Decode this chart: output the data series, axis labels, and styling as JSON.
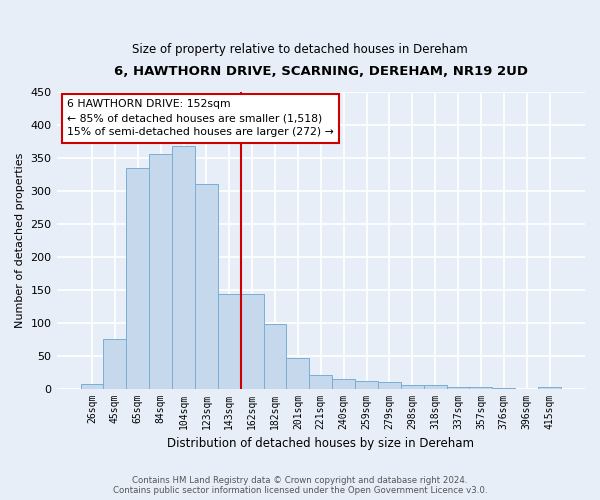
{
  "title": "6, HAWTHORN DRIVE, SCARNING, DEREHAM, NR19 2UD",
  "subtitle": "Size of property relative to detached houses in Dereham",
  "xlabel": "Distribution of detached houses by size in Dereham",
  "ylabel": "Number of detached properties",
  "bar_labels": [
    "26sqm",
    "45sqm",
    "65sqm",
    "84sqm",
    "104sqm",
    "123sqm",
    "143sqm",
    "162sqm",
    "182sqm",
    "201sqm",
    "221sqm",
    "240sqm",
    "259sqm",
    "279sqm",
    "298sqm",
    "318sqm",
    "337sqm",
    "357sqm",
    "376sqm",
    "396sqm",
    "415sqm"
  ],
  "bar_values": [
    7,
    75,
    335,
    355,
    368,
    310,
    143,
    143,
    98,
    46,
    21,
    15,
    12,
    10,
    5,
    5,
    3,
    2,
    1,
    0,
    3
  ],
  "bar_color": "#c6d9ec",
  "bar_edge_color": "#7aaed4",
  "vline_x_idx": 7,
  "vline_color": "#cc0000",
  "annotation_title": "6 HAWTHORN DRIVE: 152sqm",
  "annotation_line1": "← 85% of detached houses are smaller (1,518)",
  "annotation_line2": "15% of semi-detached houses are larger (272) →",
  "annotation_box_facecolor": "#ffffff",
  "annotation_box_edgecolor": "#cc0000",
  "ylim": [
    0,
    450
  ],
  "yticks": [
    0,
    50,
    100,
    150,
    200,
    250,
    300,
    350,
    400,
    450
  ],
  "footer1": "Contains HM Land Registry data © Crown copyright and database right 2024.",
  "footer2": "Contains public sector information licensed under the Open Government Licence v3.0.",
  "background_color": "#e8eef8",
  "grid_color": "#ffffff",
  "title_fontsize": 9.5,
  "subtitle_fontsize": 8.5
}
